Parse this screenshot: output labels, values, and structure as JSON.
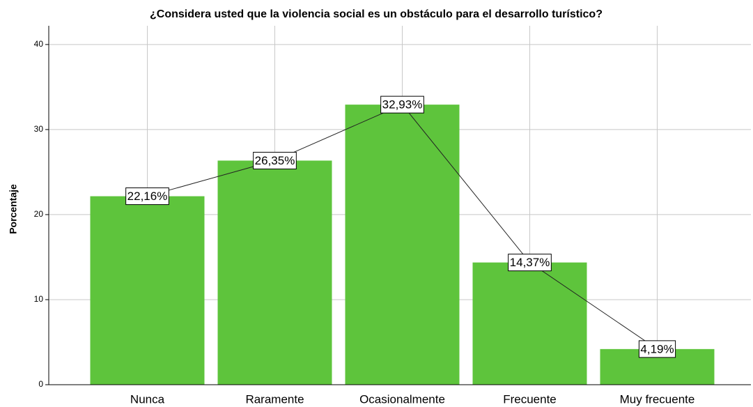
{
  "chart_data": {
    "type": "bar",
    "title": "¿Considera usted que la violencia social es un obstáculo para el desarrollo turístico?",
    "y_label": "Porcentaje",
    "categories": [
      "Nunca",
      "Raramente",
      "Ocasionalmente",
      "Frecuente",
      "Muy frecuente"
    ],
    "values": [
      22.16,
      26.35,
      32.93,
      14.37,
      4.19
    ],
    "value_labels": [
      "22,16%",
      "26,35%",
      "32,93%",
      "14,37%",
      "4,19%"
    ],
    "color": "#5ec43c",
    "ylim": [
      0,
      42.2
    ],
    "yticks": [
      0,
      10,
      20,
      30,
      40
    ],
    "grid": true
  }
}
